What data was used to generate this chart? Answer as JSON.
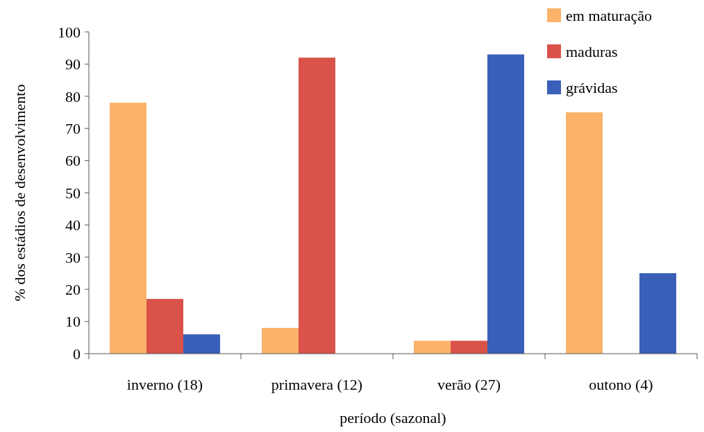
{
  "chart_data": {
    "type": "bar",
    "xlabel": "período (sazonal)",
    "ylabel": "% dos estádios de desenvolvimento",
    "categories": [
      "inverno (18)",
      "primavera (12)",
      "verão (27)",
      "outono (4)"
    ],
    "series": [
      {
        "name": "em maturação",
        "color": "#fbb36a",
        "values": [
          78,
          8,
          4,
          75
        ]
      },
      {
        "name": "maduras",
        "color": "#d9534a",
        "values": [
          17,
          92,
          4,
          0
        ]
      },
      {
        "name": "grávidas",
        "color": "#3a5fb8",
        "values": [
          6,
          0,
          93,
          25
        ]
      }
    ],
    "ylim": [
      0,
      100
    ],
    "yticks": [
      0,
      10,
      20,
      30,
      40,
      50,
      60,
      70,
      80,
      90,
      100
    ],
    "grid": false,
    "legend": "top right"
  }
}
